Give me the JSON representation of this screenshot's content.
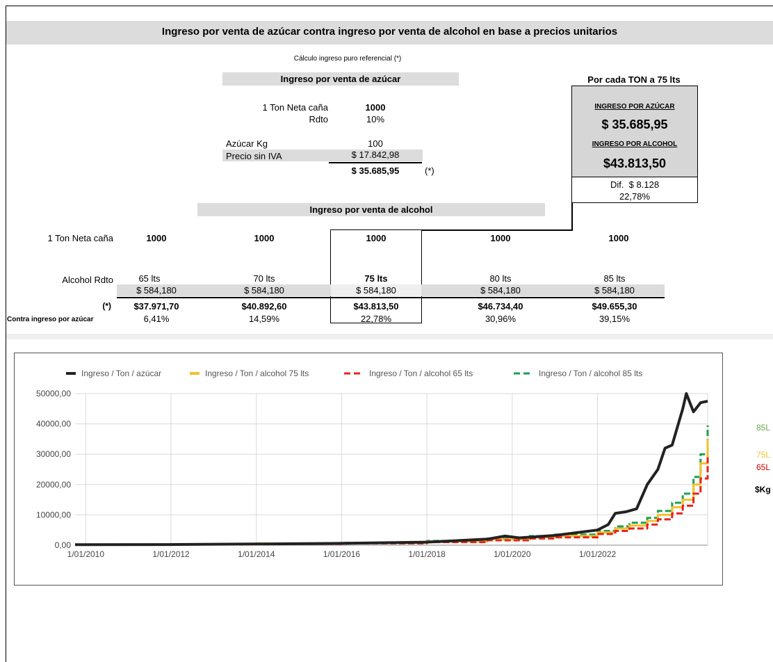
{
  "title": "Ingreso por venta de azúcar contra ingreso por venta de alcohol en base a precios unitarios",
  "subtitle": "Cálculo ingreso puro referencial (*)",
  "sugar": {
    "header": "Ingreso por venta de azúcar",
    "ton_label": "1 Ton Neta caña",
    "ton_value": "1000",
    "rdto_label": "Rdto",
    "rdto_value": "10%",
    "azucar_label": "Azúcar Kg",
    "azucar_value": "100",
    "precio_label": "Precio sin IVA",
    "precio_value": "$ 17.842,98",
    "total_value": "$ 35.685,95",
    "total_note": "(*)"
  },
  "summary": {
    "header": "Por cada TON a 75 lts",
    "sugar_label": "INGRESO POR AZÚCAR",
    "sugar_value": "$ 35.685,95",
    "alcohol_label": "INGRESO POR ALCOHOL",
    "alcohol_value": "$43.813,50",
    "dif_label": "Dif.",
    "dif_value": "$ 8.128",
    "dif_pct": "22,78%"
  },
  "alcohol": {
    "header": "Ingreso por venta de alcohol",
    "ton_label": "1 Ton Neta caña",
    "rdto_label": "Alcohol Rdto",
    "total_label": "(*)",
    "pct_label": "Contra ingreso por azúcar",
    "columns": [
      {
        "ton": "1000",
        "rdto": "65 lts",
        "price": "$ 584,180",
        "total": "$37.971,70",
        "pct": "6,41%"
      },
      {
        "ton": "1000",
        "rdto": "70 lts",
        "price": "$ 584,180",
        "total": "$40.892,60",
        "pct": "14,59%"
      },
      {
        "ton": "1000",
        "rdto": "75 lts",
        "price": "$ 584,180",
        "total": "$43.813,50",
        "pct": "22,78%"
      },
      {
        "ton": "1000",
        "rdto": "80 lts",
        "price": "$ 584,180",
        "total": "$46.734,40",
        "pct": "30,96%"
      },
      {
        "ton": "1000",
        "rdto": "85 lts",
        "price": "$ 584,180",
        "total": "$49.655,30",
        "pct": "39,15%"
      }
    ]
  },
  "side_labels": {
    "l85": "85L",
    "l75": "75L",
    "l65": "65L",
    "kg": "$Kg"
  },
  "chart_data": {
    "type": "line",
    "x_ticks": [
      "1/01/2010",
      "1/01/2012",
      "1/01/2014",
      "1/01/2016",
      "1/01/2018",
      "1/01/2020",
      "1/01/2022"
    ],
    "y_ticks": [
      "0,00",
      "10000,00",
      "20000,00",
      "30000,00",
      "40000,00",
      "50000,00"
    ],
    "ylim": [
      0,
      50000
    ],
    "xlim": [
      "2009-10",
      "2024-08"
    ],
    "grid": true,
    "legend_position": "top",
    "series": [
      {
        "name": "Ingreso / Ton / azúcar",
        "color": "#222222",
        "dash": false,
        "points": [
          [
            "2009-10",
            150
          ],
          [
            "2012-01",
            200
          ],
          [
            "2014-01",
            400
          ],
          [
            "2016-01",
            600
          ],
          [
            "2018-01",
            1000
          ],
          [
            "2019-06",
            2000
          ],
          [
            "2019-11",
            3000
          ],
          [
            "2020-03",
            2400
          ],
          [
            "2021-01",
            3200
          ],
          [
            "2022-01",
            5000
          ],
          [
            "2022-04",
            6800
          ],
          [
            "2022-06",
            10500
          ],
          [
            "2022-09",
            11000
          ],
          [
            "2022-12",
            12000
          ],
          [
            "2023-03",
            20000
          ],
          [
            "2023-06",
            25000
          ],
          [
            "2023-08",
            32000
          ],
          [
            "2023-10",
            33000
          ],
          [
            "2023-12",
            41000
          ],
          [
            "2024-01",
            45000
          ],
          [
            "2024-02",
            50000
          ],
          [
            "2024-04",
            44000
          ],
          [
            "2024-06",
            47000
          ],
          [
            "2024-08",
            47500
          ]
        ]
      },
      {
        "name": "Ingreso / Ton / alcohol 75 lts",
        "color": "#f2c12e",
        "dash": false,
        "points": [
          [
            "2009-10",
            200
          ],
          [
            "2012-01",
            300
          ],
          [
            "2014-01",
            500
          ],
          [
            "2016-01",
            700
          ],
          [
            "2018-01",
            1200
          ],
          [
            "2019-06",
            1900
          ],
          [
            "2020-06",
            2600
          ],
          [
            "2021-01",
            3000
          ],
          [
            "2022-01",
            4200
          ],
          [
            "2022-06",
            5500
          ],
          [
            "2022-10",
            6500
          ],
          [
            "2023-03",
            8000
          ],
          [
            "2023-06",
            10000
          ],
          [
            "2023-10",
            12500
          ],
          [
            "2024-01",
            15000
          ],
          [
            "2024-04",
            20000
          ],
          [
            "2024-06",
            27000
          ],
          [
            "2024-08",
            35000
          ]
        ]
      },
      {
        "name": "Ingreso / Ton / alcohol 65 lts",
        "color": "#e8221b",
        "dash": true,
        "points": [
          [
            "2009-10",
            180
          ],
          [
            "2012-01",
            250
          ],
          [
            "2014-01",
            430
          ],
          [
            "2016-01",
            600
          ],
          [
            "2018-01",
            1000
          ],
          [
            "2019-06",
            1600
          ],
          [
            "2020-06",
            2200
          ],
          [
            "2021-01",
            2600
          ],
          [
            "2022-01",
            3700
          ],
          [
            "2022-06",
            4700
          ],
          [
            "2022-10",
            5500
          ],
          [
            "2023-03",
            6800
          ],
          [
            "2023-06",
            8500
          ],
          [
            "2023-10",
            10500
          ],
          [
            "2024-01",
            13000
          ],
          [
            "2024-04",
            17000
          ],
          [
            "2024-06",
            22000
          ],
          [
            "2024-08",
            29000
          ]
        ]
      },
      {
        "name": "Ingreso / Ton / alcohol 85 lts",
        "color": "#1e9e55",
        "dash": true,
        "points": [
          [
            "2009-10",
            230
          ],
          [
            "2012-01",
            330
          ],
          [
            "2014-01",
            560
          ],
          [
            "2016-01",
            800
          ],
          [
            "2018-01",
            1400
          ],
          [
            "2019-06",
            2200
          ],
          [
            "2020-06",
            3000
          ],
          [
            "2021-01",
            3500
          ],
          [
            "2022-01",
            4700
          ],
          [
            "2022-06",
            6200
          ],
          [
            "2022-10",
            7400
          ],
          [
            "2023-03",
            9000
          ],
          [
            "2023-06",
            11300
          ],
          [
            "2023-10",
            14000
          ],
          [
            "2024-01",
            17000
          ],
          [
            "2024-04",
            22500
          ],
          [
            "2024-06",
            30000
          ],
          [
            "2024-08",
            39500
          ]
        ]
      }
    ]
  }
}
